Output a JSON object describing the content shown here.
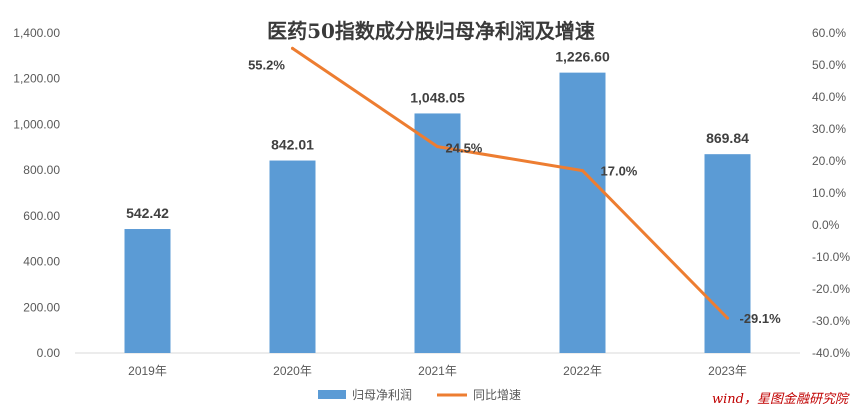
{
  "chart_data": {
    "type": "bar",
    "title": "医药50指数成分股归母净利润及增速",
    "categories": [
      "2019年",
      "2020年",
      "2021年",
      "2022年",
      "2023年"
    ],
    "series": [
      {
        "name": "归母净利润",
        "type": "bar",
        "axis": "left",
        "color": "#5b9bd5",
        "values": [
          542.42,
          842.01,
          1048.05,
          1226.6,
          869.84
        ],
        "labels": [
          "542.42",
          "842.01",
          "1,048.05",
          "1,226.60",
          "869.84"
        ]
      },
      {
        "name": "同比增速",
        "type": "line",
        "axis": "right",
        "color": "#ed7d31",
        "values": [
          null,
          55.2,
          24.5,
          17.0,
          -29.1
        ],
        "labels": [
          "",
          "55.2%",
          "24.5%",
          "17.0%",
          "-29.1%"
        ]
      }
    ],
    "y_left": {
      "range": [
        0,
        1400
      ],
      "ticks": [
        0,
        200,
        400,
        600,
        800,
        1000,
        1200,
        1400
      ],
      "tick_labels": [
        "0.00",
        "200.00",
        "400.00",
        "600.00",
        "800.00",
        "1,000.00",
        "1,200.00",
        "1,400.00"
      ]
    },
    "y_right": {
      "range": [
        -40,
        60
      ],
      "ticks": [
        -40,
        -30,
        -20,
        -10,
        0,
        10,
        20,
        30,
        40,
        50,
        60
      ],
      "tick_labels": [
        "-40.0%",
        "-30.0%",
        "-20.0%",
        "-10.0%",
        "0.0%",
        "10.0%",
        "20.0%",
        "30.0%",
        "40.0%",
        "50.0%",
        "60.0%"
      ]
    },
    "grid": false,
    "legend_position": "bottom"
  },
  "source_note": "wind，星图金融研究院"
}
